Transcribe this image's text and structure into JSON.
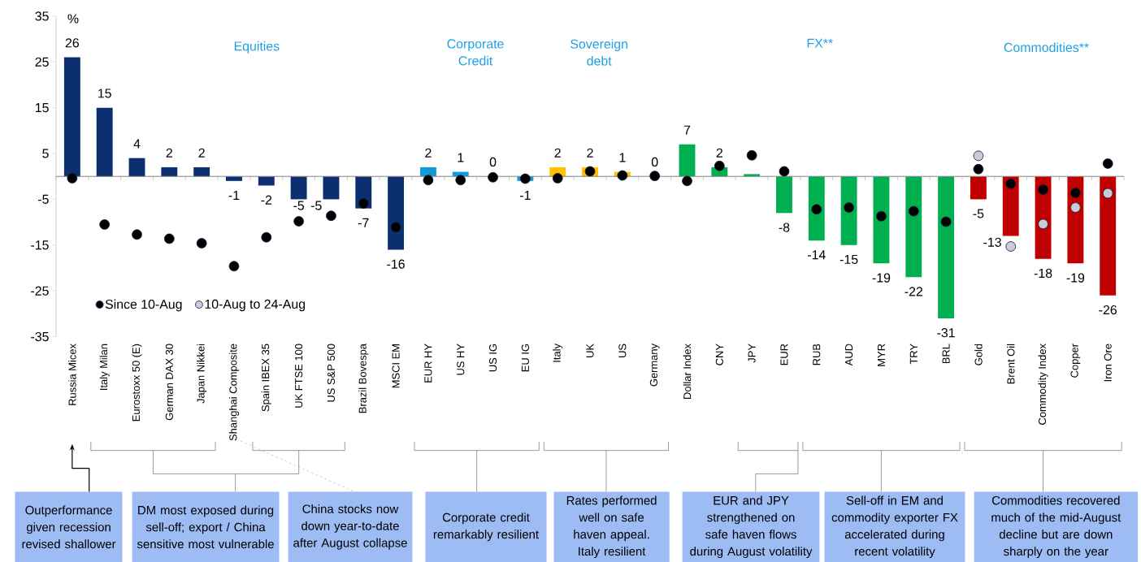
{
  "chart_data": {
    "type": "bar",
    "ylabel": "%",
    "categories": [
      "Russia Micex",
      "Italy Milan",
      "Eurostoxx 50 (E)",
      "German DAX 30",
      "Japan Nikkei",
      "Shanghai Composite",
      "Spain IBEX 35",
      "UK FTSE 100",
      "US S&P 500",
      "Brazil Bovespa",
      "MSCI EM",
      "EUR HY",
      "US HY",
      "US IG",
      "EU IG",
      "Italy",
      "UK",
      "US",
      "Germany",
      "Dollar Index",
      "CNY",
      "JPY",
      "EUR",
      "RUB",
      "AUD",
      "MYR",
      "TRY",
      "BRL",
      "Gold",
      "Brent Oil",
      "Commodity Index",
      "Copper",
      "Iron Ore"
    ],
    "series": [
      {
        "values": [
          26,
          15,
          4,
          2,
          2,
          -1,
          -2,
          -5,
          -5,
          -7,
          -16,
          2,
          1,
          0,
          -1,
          2,
          2,
          1,
          0,
          7,
          2,
          0.5,
          -8,
          -14,
          -15,
          -19,
          -22,
          -31,
          -5,
          -13,
          -18,
          -19,
          -26
        ],
        "value_labels": [
          "26",
          "15",
          "4",
          "2",
          "2",
          "-1",
          "-2",
          "-5",
          "-5",
          "-7",
          "-16",
          "2",
          "1",
          "0",
          "-1",
          "2",
          "2",
          "1",
          "0",
          "7",
          "2",
          null,
          "-8",
          "-14",
          "-15",
          "-19",
          "-22",
          "-31",
          "-5",
          "-13",
          "-18",
          "-19",
          "-26"
        ],
        "colors": [
          "#0b2f6f",
          "#0b2f6f",
          "#0b2f6f",
          "#0b2f6f",
          "#0b2f6f",
          "#0b2f6f",
          "#0b2f6f",
          "#0b2f6f",
          "#0b2f6f",
          "#0b2f6f",
          "#0b2f6f",
          "#0f9bd7",
          "#0f9bd7",
          "#0f9bd7",
          "#0f9bd7",
          "#ffc000",
          "#ffc000",
          "#ffc000",
          "#ffc000",
          "#00b050",
          "#00b050",
          "#00b050",
          "#00b050",
          "#00b050",
          "#00b050",
          "#00b050",
          "#00b050",
          "#00b050",
          "#c00000",
          "#c00000",
          "#c00000",
          "#c00000",
          "#c00000"
        ]
      },
      {
        "type": "scatter",
        "name": "Since 10-Aug",
        "color": "#000000",
        "values": [
          -0.4,
          -10.5,
          -12.7,
          -13.6,
          -14.6,
          -19.6,
          -13.3,
          -9.8,
          -8.6,
          -5.9,
          -11.1,
          -0.8,
          -0.8,
          -0.2,
          -0.5,
          -0.4,
          1.1,
          0.2,
          0.1,
          -1.0,
          2.3,
          4.6,
          1.1,
          -7.2,
          -6.8,
          -8.7,
          -7.6,
          -9.9,
          1.6,
          -1.6,
          -2.9,
          -3.6,
          2.8
        ]
      },
      {
        "type": "scatter",
        "name": "10-Aug to 24-Aug",
        "color": "#c9cbd9",
        "values": [
          null,
          null,
          null,
          null,
          null,
          null,
          null,
          null,
          null,
          null,
          null,
          null,
          null,
          null,
          null,
          null,
          null,
          null,
          null,
          null,
          null,
          null,
          null,
          null,
          null,
          null,
          null,
          null,
          4.5,
          -15.3,
          -10.4,
          -6.8,
          -3.7
        ]
      }
    ],
    "ylim": [
      -35,
      35
    ],
    "yticks": [
      -35,
      -25,
      -15,
      -5,
      5,
      15,
      25,
      35
    ],
    "legend": "bottom left",
    "annotations": [
      "Equities",
      "Corporate Credit",
      "Sovereign debt",
      "FX**",
      "Commodities**",
      "Outperformance given recession revised shallower",
      "DM most exposed during sell-off; export / China sensitive most vulnerable",
      "China stocks now down year-to-date after August collapse",
      "Corporate credit remarkably resilient",
      "Rates performed well on safe haven appeal. Italy resilient",
      "EUR and JPY strengthened on safe haven flows during August volatility",
      "Sell-off in EM and commodity exporter FX accelerated during recent volatility",
      "Commodities recovered much of the mid-August decline but are down sharply on the year"
    ]
  }
}
